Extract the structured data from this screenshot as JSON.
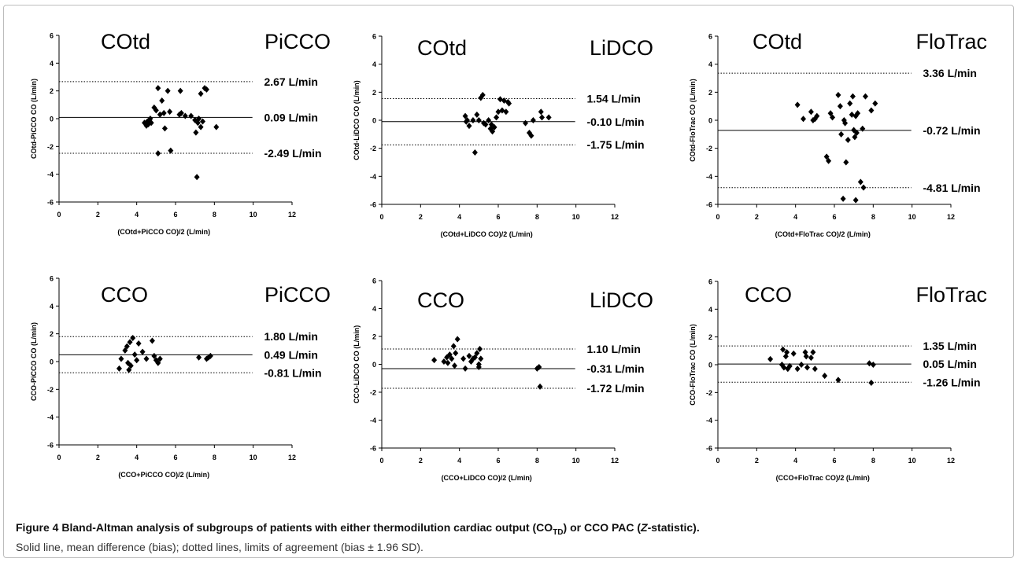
{
  "caption": {
    "label": "Figure 4",
    "bold_text_1": "Bland-Altman analysis of subgroups of patients with either thermodilution cardiac output (CO",
    "bold_sub": "TD",
    "bold_text_2": ") or CCO PAC (",
    "bold_italic": "Z",
    "bold_text_3": "-statistic)",
    "period": ".",
    "description": "Solid line, mean difference (bias); dotted lines, limits of agreement (bias ± 1.96 SD)."
  },
  "chart_data": [
    {
      "type": "scatter",
      "label_left": "COtd",
      "label_right": "PiCCO",
      "xlabel": "(COtd+PiCCO CO)/2 (L/min)",
      "ylabel": "COtd-PiCCO CO (L/min)",
      "xlim": [
        0,
        12
      ],
      "ylim": [
        -6,
        6
      ],
      "xticks": [
        "0",
        "2",
        "4",
        "6",
        "8",
        "10",
        "12"
      ],
      "yticks": [
        "6",
        "4",
        "2",
        "0",
        "-2",
        "-4",
        "-6"
      ],
      "bias": 0.09,
      "upper": 2.67,
      "lower": -2.49,
      "bias_label": "0.09 L/min",
      "upper_label": "2.67 L/min",
      "lower_label": "-2.49 L/min",
      "points": [
        [
          4.4,
          -0.3
        ],
        [
          4.5,
          -0.5
        ],
        [
          4.55,
          -0.2
        ],
        [
          4.6,
          -0.4
        ],
        [
          4.7,
          0.0
        ],
        [
          4.75,
          -0.3
        ],
        [
          4.9,
          0.8
        ],
        [
          5.0,
          0.6
        ],
        [
          5.1,
          -2.5
        ],
        [
          5.1,
          2.2
        ],
        [
          5.2,
          0.3
        ],
        [
          5.3,
          1.3
        ],
        [
          5.4,
          0.4
        ],
        [
          5.45,
          -0.7
        ],
        [
          5.6,
          2.0
        ],
        [
          5.7,
          0.5
        ],
        [
          5.75,
          -2.3
        ],
        [
          6.2,
          0.3
        ],
        [
          6.25,
          2.0
        ],
        [
          6.3,
          0.4
        ],
        [
          6.5,
          0.2
        ],
        [
          6.8,
          0.2
        ],
        [
          7.0,
          -0.1
        ],
        [
          7.05,
          -1.0
        ],
        [
          7.1,
          -4.2
        ],
        [
          7.15,
          -0.3
        ],
        [
          7.2,
          0.0
        ],
        [
          7.3,
          1.8
        ],
        [
          7.3,
          -0.6
        ],
        [
          7.4,
          -0.2
        ],
        [
          7.5,
          2.2
        ],
        [
          7.6,
          2.1
        ],
        [
          8.1,
          -0.6
        ]
      ]
    },
    {
      "type": "scatter",
      "label_left": "COtd",
      "label_right": "LiDCO",
      "xlabel": "(COtd+LiDCO CO)/2 (L/min)",
      "ylabel": "COtd-LiDCO CO (L/min)",
      "xlim": [
        0,
        12
      ],
      "ylim": [
        -6,
        6
      ],
      "xticks": [
        "0",
        "2",
        "4",
        "6",
        "8",
        "10",
        "12"
      ],
      "yticks": [
        "6",
        "4",
        "2",
        "0",
        "-2",
        "-4",
        "-6"
      ],
      "bias": -0.1,
      "upper": 1.54,
      "lower": -1.75,
      "bias_label": "-0.10 L/min",
      "upper_label": "1.54 L/min",
      "lower_label": "-1.75 L/min",
      "points": [
        [
          4.3,
          0.3
        ],
        [
          4.35,
          -0.1
        ],
        [
          4.4,
          0.0
        ],
        [
          4.5,
          -0.4
        ],
        [
          4.7,
          0.0
        ],
        [
          4.8,
          -2.3
        ],
        [
          4.9,
          0.4
        ],
        [
          5.0,
          0.0
        ],
        [
          5.1,
          1.6
        ],
        [
          5.2,
          1.8
        ],
        [
          5.25,
          -0.2
        ],
        [
          5.35,
          -0.3
        ],
        [
          5.5,
          0.0
        ],
        [
          5.6,
          -0.6
        ],
        [
          5.65,
          -0.3
        ],
        [
          5.7,
          -0.8
        ],
        [
          5.8,
          -0.5
        ],
        [
          5.9,
          0.2
        ],
        [
          6.0,
          0.6
        ],
        [
          6.1,
          1.5
        ],
        [
          6.2,
          0.7
        ],
        [
          6.3,
          1.4
        ],
        [
          6.4,
          0.6
        ],
        [
          6.5,
          1.3
        ],
        [
          6.55,
          1.2
        ],
        [
          7.4,
          -0.2
        ],
        [
          7.6,
          -0.9
        ],
        [
          7.7,
          -1.1
        ],
        [
          7.8,
          0.0
        ],
        [
          8.2,
          0.6
        ],
        [
          8.25,
          0.2
        ],
        [
          8.6,
          0.2
        ]
      ]
    },
    {
      "type": "scatter",
      "label_left": "COtd",
      "label_right": "FloTrac",
      "xlabel": "(COtd+FloTrac CO)/2 (L/min)",
      "ylabel": "COtd-FloTrac CO (L/min)",
      "xlim": [
        0,
        12
      ],
      "ylim": [
        -6,
        6
      ],
      "xticks": [
        "0",
        "2",
        "4",
        "6",
        "8",
        "10",
        "12"
      ],
      "yticks": [
        "6",
        "4",
        "2",
        "0",
        "-2",
        "-4",
        "-6"
      ],
      "bias": -0.72,
      "upper": 3.36,
      "lower": -4.81,
      "bias_label": "-0.72 L/min",
      "upper_label": "3.36 L/min",
      "lower_label": "-4.81 L/min",
      "points": [
        [
          4.1,
          1.1
        ],
        [
          4.4,
          0.1
        ],
        [
          4.8,
          0.6
        ],
        [
          4.9,
          0.0
        ],
        [
          5.0,
          0.1
        ],
        [
          5.1,
          0.3
        ],
        [
          5.6,
          -2.6
        ],
        [
          5.7,
          -2.9
        ],
        [
          5.8,
          0.5
        ],
        [
          5.9,
          0.2
        ],
        [
          6.2,
          1.8
        ],
        [
          6.3,
          1.0
        ],
        [
          6.35,
          -1.0
        ],
        [
          6.45,
          -5.6
        ],
        [
          6.5,
          0.0
        ],
        [
          6.55,
          -0.2
        ],
        [
          6.6,
          -3.0
        ],
        [
          6.7,
          -1.4
        ],
        [
          6.8,
          1.2
        ],
        [
          6.9,
          0.4
        ],
        [
          6.95,
          1.7
        ],
        [
          7.0,
          -0.7
        ],
        [
          7.05,
          -1.2
        ],
        [
          7.1,
          0.3
        ],
        [
          7.1,
          -5.7
        ],
        [
          7.15,
          -0.9
        ],
        [
          7.2,
          0.5
        ],
        [
          7.35,
          -4.4
        ],
        [
          7.45,
          -0.6
        ],
        [
          7.5,
          -4.8
        ],
        [
          7.6,
          1.7
        ],
        [
          7.9,
          0.7
        ],
        [
          8.1,
          1.2
        ]
      ]
    },
    {
      "type": "scatter",
      "label_left": "CCO",
      "label_right": "PiCCO",
      "xlabel": "(CCO+PiCCO CO)/2 (L/min)",
      "ylabel": "CCO-PiCCO CO (L/min)",
      "xlim": [
        0,
        12
      ],
      "ylim": [
        -6,
        6
      ],
      "xticks": [
        "0",
        "2",
        "4",
        "6",
        "8",
        "10",
        "12"
      ],
      "yticks": [
        "6",
        "4",
        "2",
        "0",
        "-2",
        "-4",
        "-6"
      ],
      "bias": 0.49,
      "upper": 1.8,
      "lower": -0.81,
      "bias_label": "0.49 L/min",
      "upper_label": "1.80 L/min",
      "lower_label": "-0.81 L/min",
      "points": [
        [
          3.1,
          -0.5
        ],
        [
          3.2,
          0.2
        ],
        [
          3.4,
          0.8
        ],
        [
          3.5,
          1.1
        ],
        [
          3.55,
          -0.1
        ],
        [
          3.6,
          -0.6
        ],
        [
          3.65,
          1.4
        ],
        [
          3.7,
          -0.3
        ],
        [
          3.8,
          1.7
        ],
        [
          3.9,
          0.5
        ],
        [
          4.0,
          0.1
        ],
        [
          4.1,
          1.3
        ],
        [
          4.3,
          0.7
        ],
        [
          4.5,
          0.2
        ],
        [
          4.8,
          1.5
        ],
        [
          4.9,
          0.4
        ],
        [
          5.0,
          0.1
        ],
        [
          5.1,
          -0.1
        ],
        [
          5.2,
          0.2
        ],
        [
          7.2,
          0.3
        ],
        [
          7.6,
          0.2
        ],
        [
          7.7,
          0.3
        ],
        [
          7.8,
          0.4
        ]
      ]
    },
    {
      "type": "scatter",
      "label_left": "CCO",
      "label_right": "LiDCO",
      "xlabel": "(CCO+LiDCO CO)/2 (L/min)",
      "ylabel": "CCO-LiDCO CO (L/min)",
      "xlim": [
        0,
        12
      ],
      "ylim": [
        -6,
        6
      ],
      "xticks": [
        "0",
        "2",
        "4",
        "6",
        "8",
        "10",
        "12"
      ],
      "yticks": [
        "6",
        "4",
        "2",
        "0",
        "-2",
        "-4",
        "-6"
      ],
      "bias": -0.31,
      "upper": 1.1,
      "lower": -1.72,
      "bias_label": "-0.31 L/min",
      "upper_label": "1.10 L/min",
      "lower_label": "-1.72 L/min",
      "points": [
        [
          2.7,
          0.3
        ],
        [
          3.2,
          0.2
        ],
        [
          3.35,
          0.5
        ],
        [
          3.4,
          0.1
        ],
        [
          3.5,
          0.7
        ],
        [
          3.6,
          0.4
        ],
        [
          3.7,
          1.3
        ],
        [
          3.75,
          -0.1
        ],
        [
          3.8,
          0.8
        ],
        [
          3.9,
          1.8
        ],
        [
          4.2,
          0.4
        ],
        [
          4.3,
          -0.3
        ],
        [
          4.5,
          0.6
        ],
        [
          4.6,
          0.2
        ],
        [
          4.7,
          0.4
        ],
        [
          4.8,
          0.5
        ],
        [
          4.9,
          0.8
        ],
        [
          5.0,
          0.0
        ],
        [
          5.0,
          -0.2
        ],
        [
          5.05,
          1.1
        ],
        [
          5.1,
          0.4
        ],
        [
          8.0,
          -0.3
        ],
        [
          8.1,
          -0.2
        ],
        [
          8.15,
          -1.6
        ]
      ]
    },
    {
      "type": "scatter",
      "label_left": "CCO",
      "label_right": "FloTrac",
      "xlabel": "(CCO+FloTrac CO)/2 (L/min)",
      "ylabel": "CCO-FloTrac CO (L/min)",
      "xlim": [
        0,
        12
      ],
      "ylim": [
        -6,
        6
      ],
      "xticks": [
        "0",
        "2",
        "4",
        "6",
        "8",
        "10",
        "12"
      ],
      "yticks": [
        "6",
        "4",
        "2",
        "0",
        "-2",
        "-4",
        "-6"
      ],
      "bias": 0.05,
      "upper": 1.35,
      "lower": -1.26,
      "bias_label": "0.05 L/min",
      "upper_label": "1.35 L/min",
      "lower_label": "-1.26 L/min",
      "points": [
        [
          2.7,
          0.4
        ],
        [
          3.3,
          0.0
        ],
        [
          3.35,
          1.1
        ],
        [
          3.4,
          -0.2
        ],
        [
          3.5,
          0.6
        ],
        [
          3.55,
          0.9
        ],
        [
          3.6,
          -0.3
        ],
        [
          3.7,
          -0.1
        ],
        [
          3.9,
          0.8
        ],
        [
          4.1,
          -0.3
        ],
        [
          4.3,
          0.0
        ],
        [
          4.5,
          0.9
        ],
        [
          4.55,
          0.6
        ],
        [
          4.6,
          -0.2
        ],
        [
          4.8,
          0.5
        ],
        [
          4.9,
          0.9
        ],
        [
          5.0,
          -0.3
        ],
        [
          5.5,
          -0.8
        ],
        [
          6.2,
          -1.1
        ],
        [
          7.8,
          0.1
        ],
        [
          7.9,
          -1.3
        ],
        [
          8.0,
          0.0
        ]
      ]
    }
  ]
}
